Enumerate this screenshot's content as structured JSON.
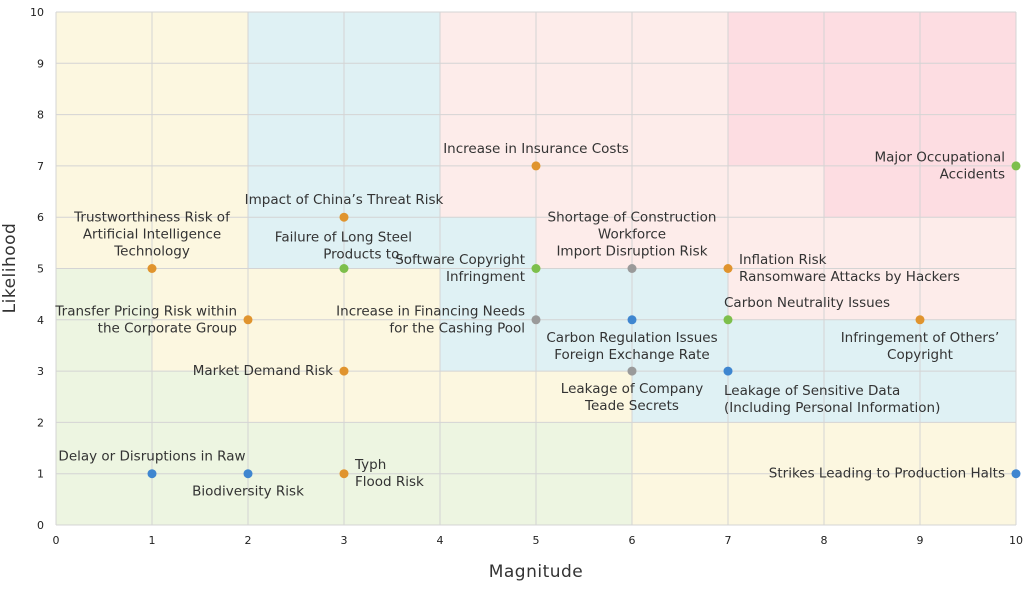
{
  "chart_data": {
    "type": "scatter",
    "title": "",
    "xlabel": "Magnitude",
    "ylabel": "Likelihood",
    "xlim": [
      0,
      10
    ],
    "ylim": [
      0,
      10
    ],
    "x_ticks": [
      "0",
      "1",
      "2",
      "3",
      "4",
      "5",
      "6",
      "7",
      "8",
      "9",
      "10"
    ],
    "y_ticks": [
      "0",
      "1",
      "2",
      "3",
      "4",
      "5",
      "6",
      "7",
      "8",
      "9",
      "10"
    ],
    "grid": true,
    "legend": "none",
    "colors": {
      "orange": "#e0942e",
      "green": "#7dbf4c",
      "blue": "#3f86d0",
      "gray": "#9a9a9a"
    },
    "zone_colors": {
      "green": "#edf5e1",
      "yellow": "#fcf7e0",
      "blue": "#dff1f4",
      "peach": "#fdecea",
      "red": "#fddde2"
    },
    "zones": [
      {
        "color": "green",
        "x": [
          0,
          1
        ],
        "y": [
          0,
          5
        ]
      },
      {
        "color": "green",
        "x": [
          1,
          2
        ],
        "y": [
          0,
          3
        ]
      },
      {
        "color": "green",
        "x": [
          2,
          6
        ],
        "y": [
          0,
          2
        ]
      },
      {
        "color": "yellow",
        "x": [
          0,
          1
        ],
        "y": [
          5,
          10
        ]
      },
      {
        "color": "yellow",
        "x": [
          1,
          2
        ],
        "y": [
          3,
          10
        ]
      },
      {
        "color": "yellow",
        "x": [
          2,
          4
        ],
        "y": [
          2,
          5
        ]
      },
      {
        "color": "yellow",
        "x": [
          4,
          6
        ],
        "y": [
          2,
          3
        ]
      },
      {
        "color": "yellow",
        "x": [
          6,
          10
        ],
        "y": [
          0,
          2
        ]
      },
      {
        "color": "blue",
        "x": [
          2,
          4
        ],
        "y": [
          5,
          10
        ]
      },
      {
        "color": "blue",
        "x": [
          4,
          5
        ],
        "y": [
          3,
          6
        ]
      },
      {
        "color": "blue",
        "x": [
          5,
          7
        ],
        "y": [
          3,
          5
        ]
      },
      {
        "color": "blue",
        "x": [
          6,
          10
        ],
        "y": [
          2,
          3
        ]
      },
      {
        "color": "blue",
        "x": [
          7,
          10
        ],
        "y": [
          3,
          4
        ]
      },
      {
        "color": "peach",
        "x": [
          4,
          7
        ],
        "y": [
          6,
          10
        ]
      },
      {
        "color": "peach",
        "x": [
          5,
          7
        ],
        "y": [
          5,
          6
        ]
      },
      {
        "color": "peach",
        "x": [
          7,
          8
        ],
        "y": [
          4,
          7
        ]
      },
      {
        "color": "peach",
        "x": [
          8,
          10
        ],
        "y": [
          4,
          6
        ]
      },
      {
        "color": "red",
        "x": [
          7,
          10
        ],
        "y": [
          7,
          10
        ]
      },
      {
        "color": "red",
        "x": [
          8,
          10
        ],
        "y": [
          6,
          7
        ]
      }
    ],
    "points": [
      {
        "x": 1,
        "y": 1,
        "color": "blue",
        "lines": [
          "Delay or Disruptions in Raw"
        ],
        "anchor": "middle",
        "pos": "above"
      },
      {
        "x": 2,
        "y": 1,
        "color": "blue",
        "lines": [
          "Biodiversity Risk"
        ],
        "anchor": "middle",
        "pos": "below"
      },
      {
        "x": 3,
        "y": 1,
        "color": "orange",
        "lines": [
          "Typh",
          "Flood Risk"
        ],
        "anchor": "start",
        "pos": "right"
      },
      {
        "x": 1,
        "y": 5,
        "color": "orange",
        "lines": [
          "Trustworthiness Risk of",
          "Artificial Intelligence",
          "Technology"
        ],
        "anchor": "middle",
        "pos": "above"
      },
      {
        "x": 2,
        "y": 4,
        "color": "orange",
        "lines": [
          "Transfer Pricing Risk within",
          "the Corporate Group"
        ],
        "anchor": "end",
        "pos": "left"
      },
      {
        "x": 3,
        "y": 3,
        "color": "orange",
        "lines": [
          "Market Demand Risk"
        ],
        "anchor": "end",
        "pos": "left"
      },
      {
        "x": 3,
        "y": 5,
        "color": "green",
        "lines": [
          "Failure of Long Steel",
          "Products to..."
        ],
        "anchor": "end",
        "pos": "upper-left"
      },
      {
        "x": 3,
        "y": 6,
        "color": "orange",
        "lines": [
          "Impact of China’s Threat Risk"
        ],
        "anchor": "middle",
        "pos": "above"
      },
      {
        "x": 5,
        "y": 5,
        "color": "green",
        "lines": [
          "Software Copyright",
          "Infringment"
        ],
        "anchor": "end",
        "pos": "left"
      },
      {
        "x": 5,
        "y": 4,
        "color": "gray",
        "lines": [
          "Increase in Financing Needs",
          "for the Cashing Pool"
        ],
        "anchor": "end",
        "pos": "left"
      },
      {
        "x": 5,
        "y": 7,
        "color": "orange",
        "lines": [
          "Increase in Insurance Costs"
        ],
        "anchor": "middle",
        "pos": "above"
      },
      {
        "x": 6,
        "y": 5,
        "color": "gray",
        "lines": [
          "Shortage of Construction",
          "Workforce",
          "Import Disruption Risk"
        ],
        "anchor": "middle",
        "pos": "above"
      },
      {
        "x": 6,
        "y": 4,
        "color": "blue",
        "lines": [
          "Carbon Regulation Issues",
          "Foreign Exchange Rate"
        ],
        "anchor": "middle",
        "pos": "below"
      },
      {
        "x": 6,
        "y": 3,
        "color": "gray",
        "lines": [
          "Leakage of Company",
          "Teade Secrets"
        ],
        "anchor": "middle",
        "pos": "below"
      },
      {
        "x": 7,
        "y": 5,
        "color": "orange",
        "lines": [
          "Inflation Risk",
          "Ransomware Attacks by Hackers"
        ],
        "anchor": "start",
        "pos": "right"
      },
      {
        "x": 7,
        "y": 4,
        "color": "green",
        "lines": [
          "Carbon Neutrality Issues"
        ],
        "anchor": "start",
        "pos": "above-right"
      },
      {
        "x": 7,
        "y": 3,
        "color": "blue",
        "lines": [
          "Leakage of Sensitive Data",
          "(Including Personal Information)"
        ],
        "anchor": "start",
        "pos": "below-right"
      },
      {
        "x": 9,
        "y": 4,
        "color": "orange",
        "lines": [
          "Infringement of Others’",
          "Copyright"
        ],
        "anchor": "middle",
        "pos": "below"
      },
      {
        "x": 10,
        "y": 7,
        "color": "green",
        "lines": [
          "Major Occupational",
          "Accidents"
        ],
        "anchor": "end",
        "pos": "left"
      },
      {
        "x": 10,
        "y": 1,
        "color": "blue",
        "lines": [
          "Strikes Leading to Production Halts"
        ],
        "anchor": "end",
        "pos": "left"
      }
    ]
  }
}
